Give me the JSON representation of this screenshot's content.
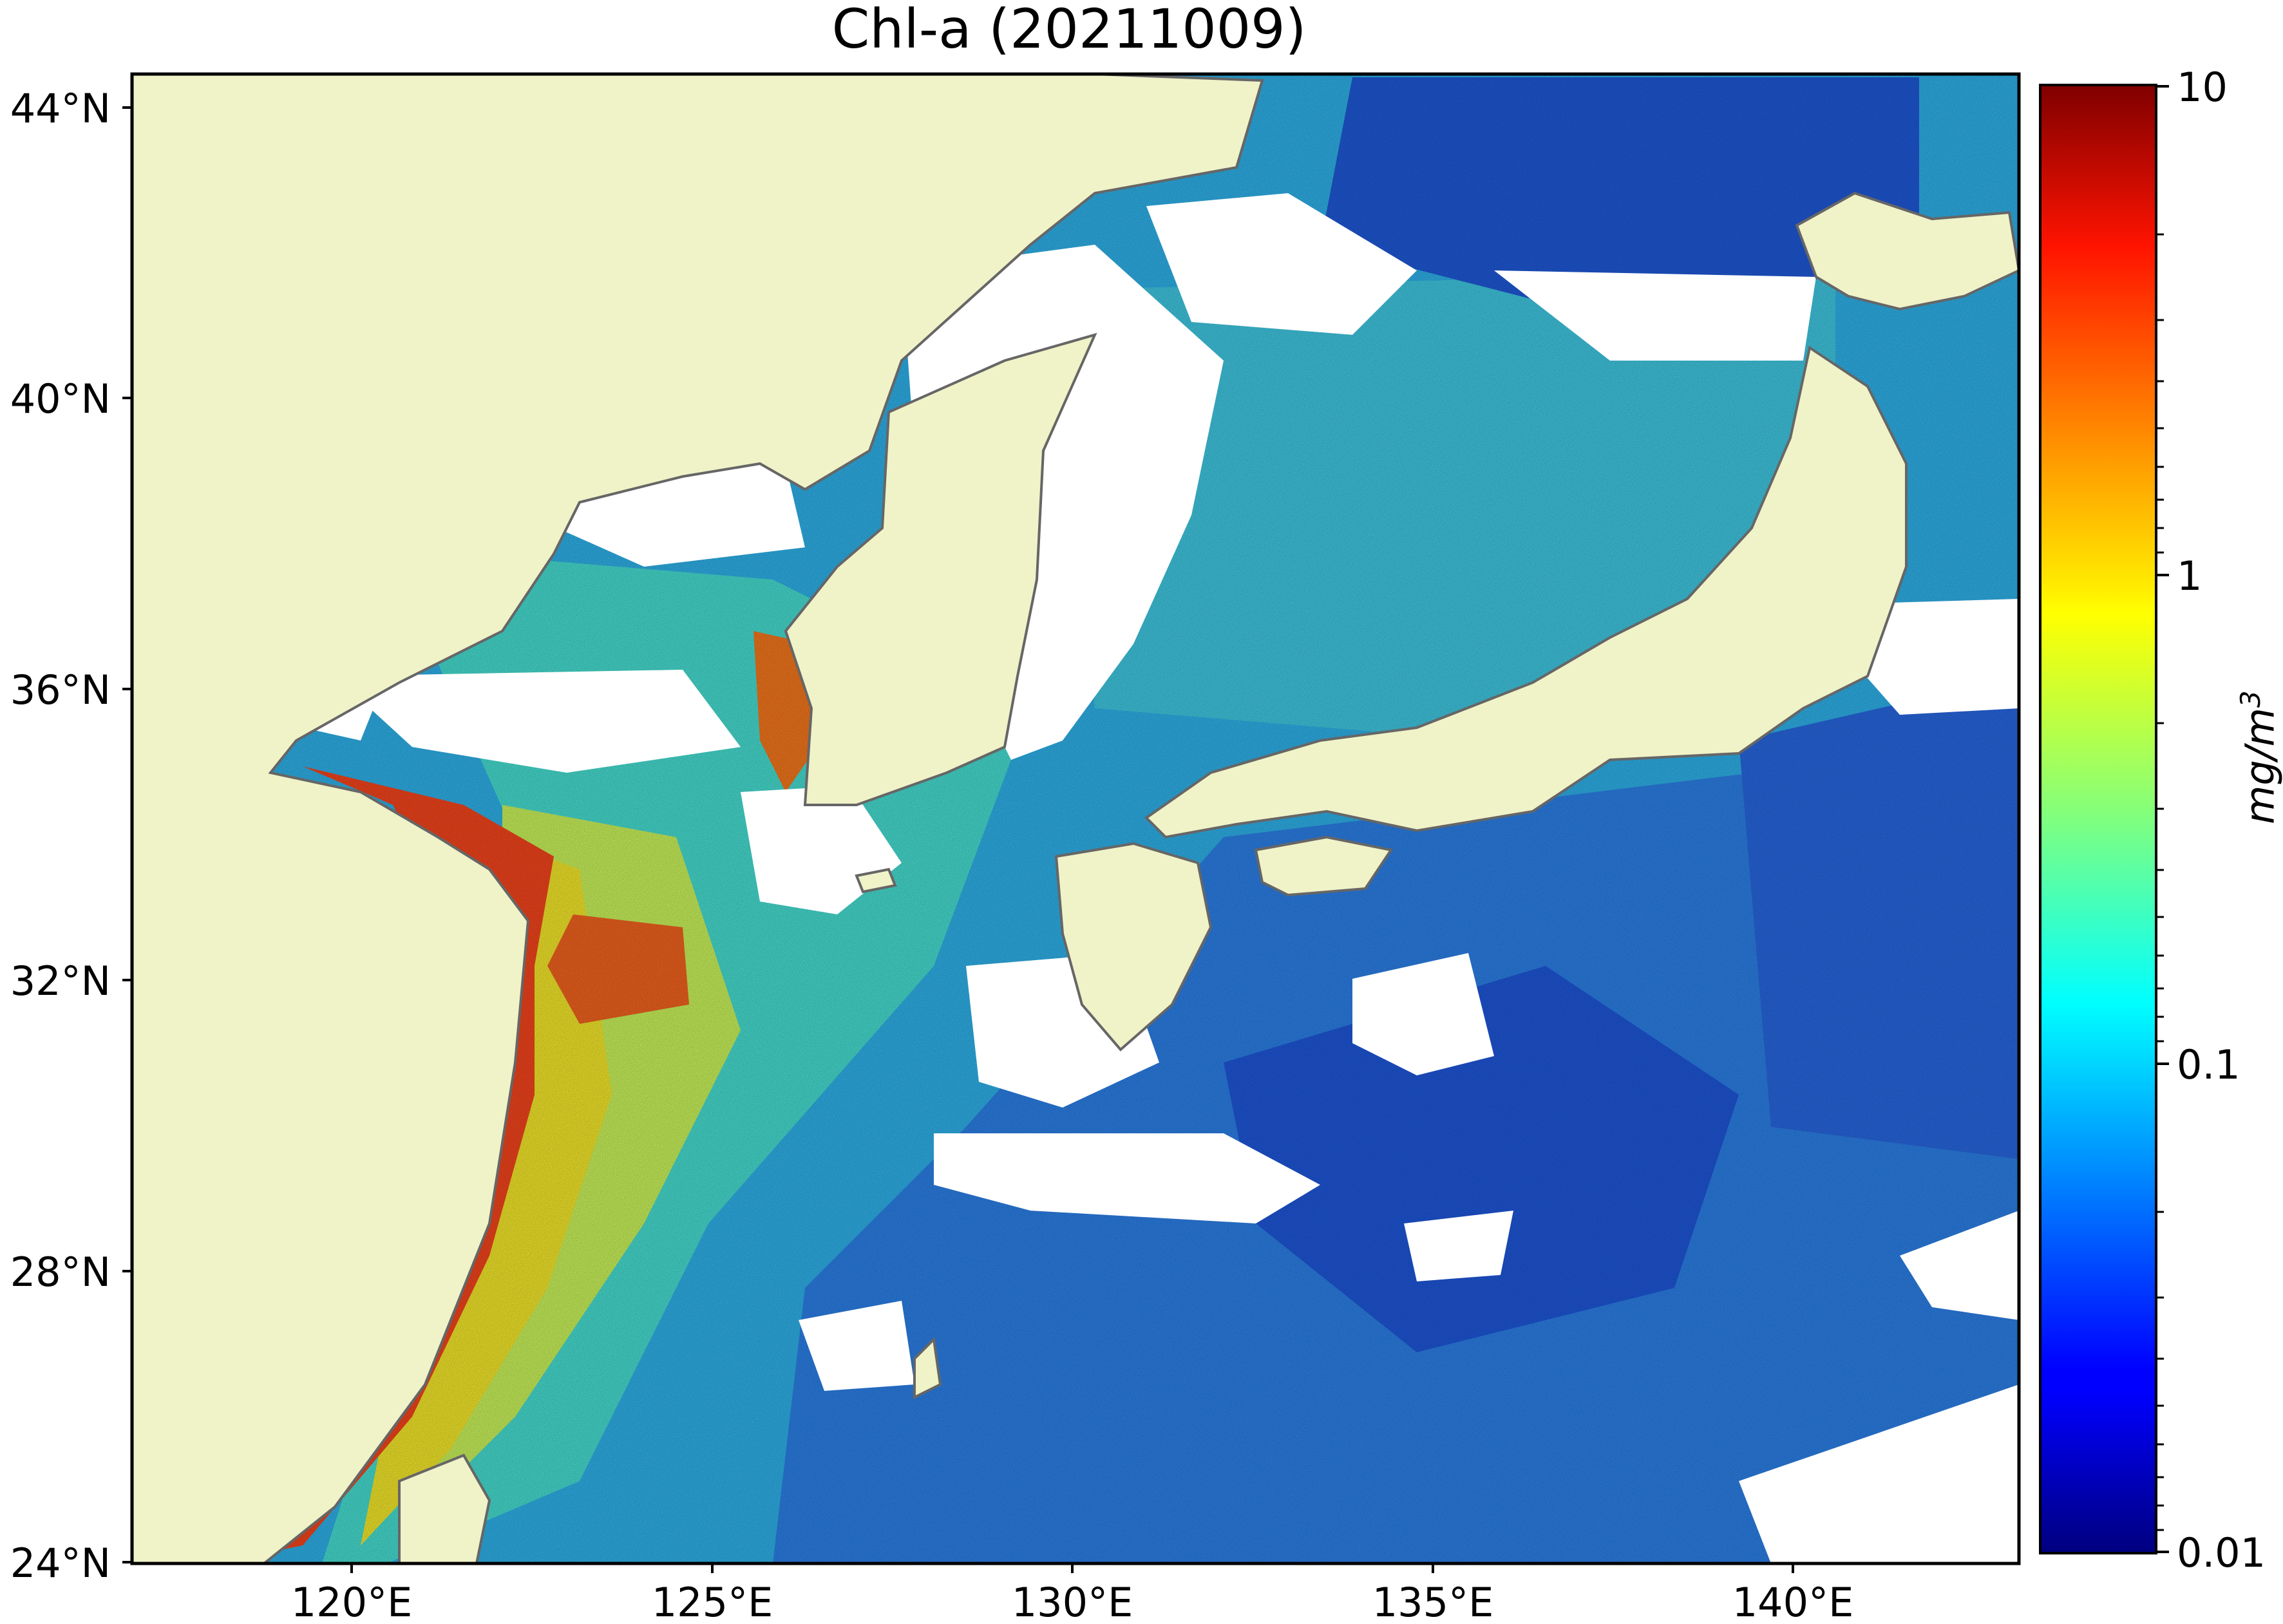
{
  "title": "Chl-a (20211009)",
  "colors": {
    "land": "#F0F2C8",
    "coast": "#666666",
    "cloud": "#FFFFFF"
  },
  "lat_labels": [
    "44°N",
    "40°N",
    "36°N",
    "32°N",
    "28°N",
    "24°N"
  ],
  "lon_labels": [
    "120°E",
    "125°E",
    "130°E",
    "135°E",
    "140°E"
  ],
  "colorbar": {
    "label_base": "mg/m",
    "label_sup": "3",
    "ticks": [
      "10",
      "1",
      "0.1",
      "0.01"
    ],
    "scale": "log",
    "colormap": "jet"
  },
  "chart_data": {
    "type": "heatmap",
    "title": "Chl-a (20211009)",
    "variable": "Chl-a",
    "date": "20211009",
    "unit": "mg/m3",
    "color_scale": "log",
    "vmin": 0.01,
    "vmax": 10,
    "x_range": [
      116.8,
      143.0
    ],
    "y_range": [
      24.0,
      44.5
    ],
    "x_ticks": [
      120,
      125,
      130,
      135,
      140
    ],
    "y_ticks": [
      24,
      28,
      32,
      36,
      40,
      44
    ]
  }
}
